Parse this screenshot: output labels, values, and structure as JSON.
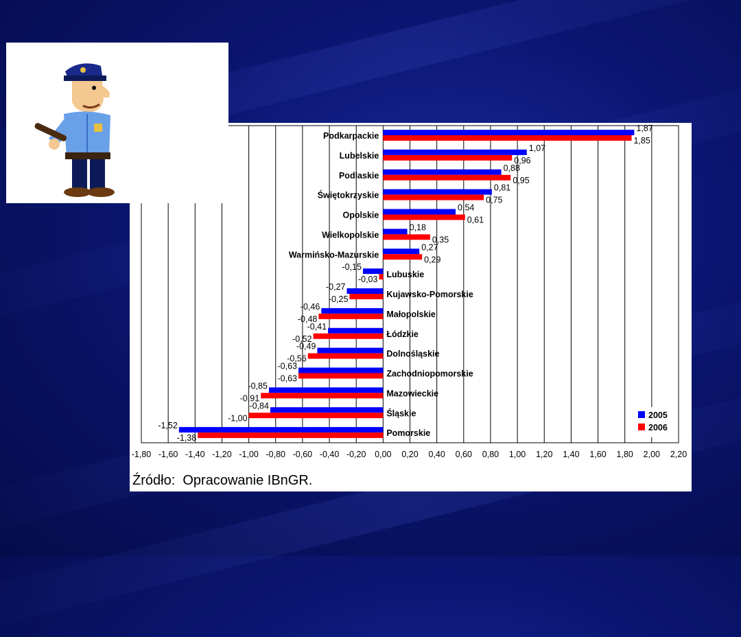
{
  "chart_data": {
    "type": "bar",
    "orientation": "horizontal",
    "categories": [
      "Podkarpackie",
      "Lubelskie",
      "Podlaskie",
      "Świętokrzyskie",
      "Opolskie",
      "Wielkopolskie",
      "Warmińsko-Mazurskie",
      "Lubuskie",
      "Kujawsko-Pomorskie",
      "Małopolskie",
      "Łódzkie",
      "Dolnośląskie",
      "Zachodniopomorskie",
      "Mazowieckie",
      "Śląskie",
      "Pomorskie"
    ],
    "series": [
      {
        "name": "2005",
        "color": "#0000ff",
        "values": [
          1.87,
          1.07,
          0.88,
          0.81,
          0.54,
          0.18,
          0.27,
          -0.15,
          -0.27,
          -0.46,
          -0.41,
          -0.49,
          -0.63,
          -0.85,
          -0.84,
          -1.52
        ],
        "labels": [
          "1,87",
          "1,07",
          "0,88",
          "0,81",
          "0,54",
          "0,18",
          "0,27",
          "-0,15",
          "-0,27",
          "-0,46",
          "-0,41",
          "-0,49",
          "-0,63",
          "-0,85",
          "-0,84",
          "-1,52"
        ]
      },
      {
        "name": "2006",
        "color": "#ff0000",
        "values": [
          1.85,
          0.96,
          0.95,
          0.75,
          0.61,
          0.35,
          0.29,
          -0.03,
          -0.25,
          -0.48,
          -0.52,
          -0.56,
          -0.63,
          -0.91,
          -1.0,
          -1.38
        ],
        "labels": [
          "1,85",
          "0,96",
          "0,95",
          "0,75",
          "0,61",
          "0,35",
          "0,29",
          "-0,03",
          "-0,25",
          "-0,48",
          "-0,52",
          "-0,56",
          "-0,63",
          "-0,91",
          "-1,00",
          "-1,38"
        ]
      }
    ],
    "xlim": [
      -1.8,
      2.2
    ],
    "xticks": [
      -1.8,
      -1.6,
      -1.4,
      -1.2,
      -1.0,
      -0.8,
      -0.6,
      -0.4,
      -0.2,
      0,
      0.2,
      0.4,
      0.6,
      0.8,
      1.0,
      1.2,
      1.4,
      1.6,
      1.8,
      2.0,
      2.2
    ],
    "xtick_labels": [
      "-1,80",
      "-1,60",
      "-1,40",
      "-1,20",
      "-1,00",
      "-0,80",
      "-0,60",
      "-0,40",
      "-0,20",
      "0,00",
      "0,20",
      "0,40",
      "0,60",
      "0,80",
      "1,00",
      "1,20",
      "1,40",
      "1,60",
      "1,80",
      "2,00",
      "2,20"
    ],
    "grid": true,
    "legend_position": "bottom-right"
  },
  "source_note": "Źródło:  Opracowanie IBnGR.",
  "clipart": {
    "icon": "policeman-icon"
  },
  "colors": {
    "background": "#0a1570",
    "panel": "#ffffff"
  }
}
